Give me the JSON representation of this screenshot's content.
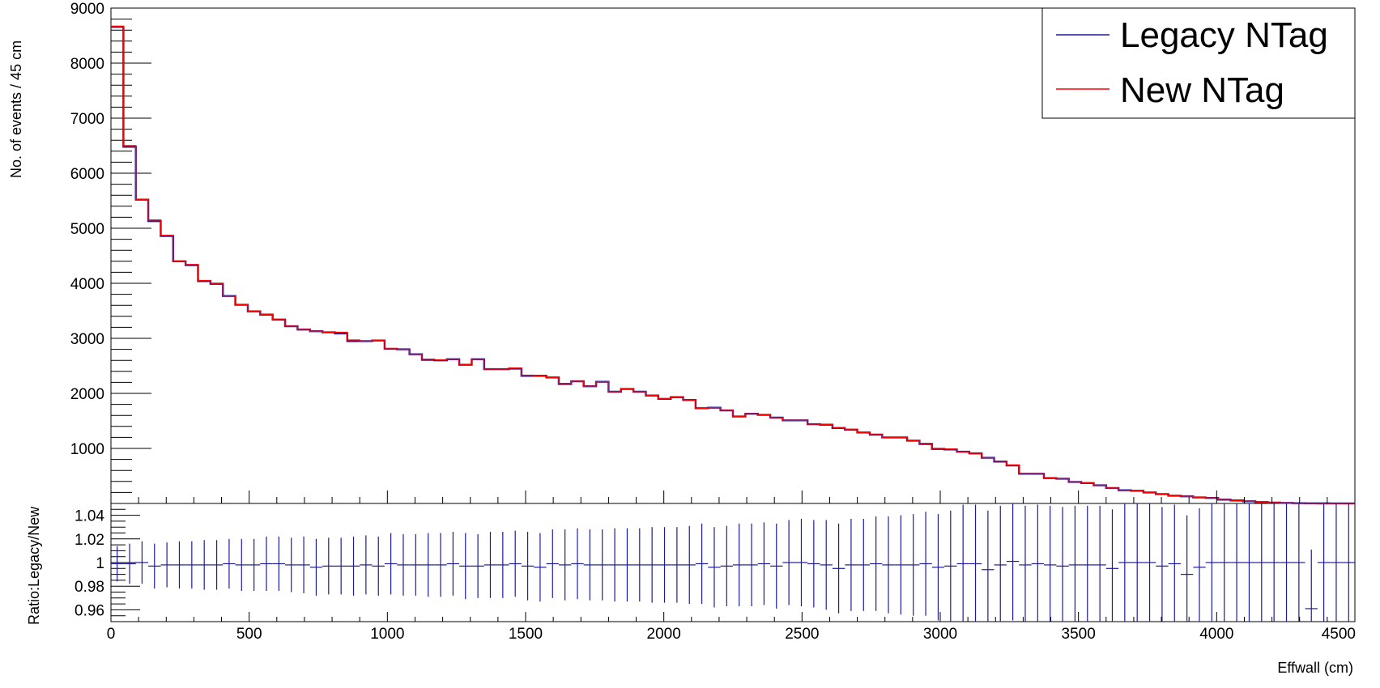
{
  "chart_data": [
    {
      "type": "step",
      "panel": "main",
      "xlabel": "Effwall (cm)",
      "ylabel": "No. of events / 45 cm",
      "xlim": [
        0,
        4500
      ],
      "ylim": [
        0,
        9000
      ],
      "ylim_visible_min": 0,
      "yticks": [
        1000,
        2000,
        3000,
        4000,
        5000,
        6000,
        7000,
        8000,
        9000
      ],
      "xticks": [
        0,
        500,
        1000,
        1500,
        2000,
        2500,
        3000,
        3500,
        4000,
        4500
      ],
      "bin_width": 45,
      "grid": false,
      "legend_position": "top-right",
      "series": [
        {
          "name": "Legacy NTag",
          "color": "#1c1c9c",
          "values": [
            8660,
            6480,
            5520,
            5130,
            4860,
            4400,
            4330,
            4040,
            3990,
            3770,
            3610,
            3490,
            3430,
            3340,
            3220,
            3160,
            3130,
            3110,
            3090,
            2950,
            2950,
            2960,
            2810,
            2800,
            2710,
            2610,
            2600,
            2620,
            2520,
            2620,
            2440,
            2440,
            2450,
            2320,
            2320,
            2290,
            2170,
            2220,
            2130,
            2210,
            2030,
            2080,
            2030,
            1960,
            1900,
            1930,
            1880,
            1730,
            1740,
            1690,
            1580,
            1630,
            1610,
            1560,
            1510,
            1510,
            1440,
            1430,
            1370,
            1340,
            1290,
            1250,
            1200,
            1200,
            1140,
            1080,
            990,
            980,
            940,
            910,
            830,
            760,
            690,
            540,
            540,
            460,
            450,
            390,
            370,
            330,
            280,
            240,
            230,
            200,
            170,
            140,
            130,
            110,
            100,
            70,
            55,
            40,
            25,
            15,
            10,
            5,
            3,
            2,
            1,
            1
          ]
        },
        {
          "name": "New NTag",
          "color": "#ff0000",
          "values": [
            8670,
            6500,
            5520,
            5150,
            4870,
            4400,
            4340,
            4050,
            4000,
            3770,
            3610,
            3490,
            3430,
            3340,
            3220,
            3160,
            3130,
            3110,
            3110,
            2970,
            2950,
            2960,
            2810,
            2800,
            2710,
            2620,
            2610,
            2620,
            2520,
            2620,
            2440,
            2440,
            2460,
            2330,
            2320,
            2290,
            2180,
            2220,
            2130,
            2210,
            2030,
            2080,
            2030,
            1960,
            1900,
            1930,
            1880,
            1730,
            1740,
            1690,
            1580,
            1630,
            1610,
            1560,
            1510,
            1510,
            1440,
            1430,
            1380,
            1340,
            1290,
            1250,
            1200,
            1200,
            1140,
            1090,
            1000,
            990,
            940,
            910,
            830,
            770,
            700,
            540,
            540,
            460,
            450,
            390,
            370,
            330,
            280,
            240,
            230,
            200,
            170,
            140,
            130,
            110,
            100,
            70,
            55,
            40,
            25,
            15,
            10,
            5,
            3,
            2,
            1,
            1
          ]
        }
      ]
    },
    {
      "type": "errorbar",
      "panel": "ratio",
      "xlabel": "Effwall (cm)",
      "ylabel": "Ratio:Legacy/New",
      "xlim": [
        0,
        4500
      ],
      "ylim": [
        0.95,
        1.05
      ],
      "yticks": [
        0.96,
        0.98,
        1,
        1.02,
        1.04
      ],
      "ytick_labels": [
        "0.96",
        "0.98",
        "1",
        "1.02",
        "1.04"
      ],
      "bin_width": 45,
      "x": [
        22.5,
        67.5,
        112.5,
        157.5,
        202.5,
        247.5,
        292.5,
        337.5,
        382.5,
        427.5,
        472.5,
        517.5,
        562.5,
        607.5,
        652.5,
        697.5,
        742.5,
        787.5,
        832.5,
        877.5,
        922.5,
        967.5,
        1012.5,
        1057.5,
        1102.5,
        1147.5,
        1192.5,
        1237.5,
        1282.5,
        1327.5,
        1372.5,
        1417.5,
        1462.5,
        1507.5,
        1552.5,
        1597.5,
        1642.5,
        1687.5,
        1732.5,
        1777.5,
        1822.5,
        1867.5,
        1912.5,
        1957.5,
        2002.5,
        2047.5,
        2092.5,
        2137.5,
        2182.5,
        2227.5,
        2272.5,
        2317.5,
        2362.5,
        2407.5,
        2452.5,
        2497.5,
        2542.5,
        2587.5,
        2632.5,
        2677.5,
        2722.5,
        2767.5,
        2812.5,
        2857.5,
        2902.5,
        2947.5,
        2992.5,
        3037.5,
        3082.5,
        3127.5,
        3172.5,
        3217.5,
        3262.5,
        3307.5,
        3352.5,
        3397.5,
        3442.5,
        3487.5,
        3532.5,
        3577.5,
        3622.5,
        3667.5,
        3712.5,
        3757.5,
        3802.5,
        3847.5,
        3892.5,
        3937.5,
        3982.5,
        4027.5,
        4072.5,
        4117.5,
        4162.5,
        4207.5,
        4252.5,
        4297.5,
        4342.5,
        4387.5,
        4432.5,
        4477.5
      ],
      "values": [
        0.999,
        0.999,
        1.0,
        0.997,
        0.998,
        0.998,
        0.998,
        0.998,
        0.998,
        0.999,
        0.998,
        0.998,
        0.999,
        0.999,
        0.998,
        0.998,
        0.996,
        0.997,
        0.997,
        0.997,
        0.998,
        0.997,
        0.999,
        0.998,
        0.998,
        0.998,
        0.998,
        0.999,
        0.997,
        0.997,
        0.998,
        0.998,
        0.999,
        0.997,
        0.996,
        0.999,
        0.998,
        0.999,
        0.998,
        0.998,
        0.998,
        0.998,
        0.998,
        0.998,
        0.998,
        0.998,
        0.998,
        0.999,
        0.996,
        0.997,
        0.998,
        0.998,
        0.999,
        0.997,
        1.0,
        1.0,
        0.999,
        0.998,
        0.995,
        0.998,
        0.998,
        0.999,
        0.998,
        0.998,
        0.998,
        0.999,
        0.996,
        0.997,
        0.999,
        0.999,
        0.994,
        0.998,
        1.001,
        0.998,
        0.999,
        0.998,
        0.997,
        0.998,
        0.998,
        0.998,
        0.995,
        1.0,
        1.0,
        1.0,
        0.997,
        0.999,
        0.99,
        0.996,
        1.0,
        1.0,
        1.0,
        1.0,
        1.0,
        1.0,
        1.0,
        1.0,
        0.961,
        1.0,
        1.0,
        1.0
      ],
      "errors": [
        0.015,
        0.017,
        0.018,
        0.019,
        0.019,
        0.02,
        0.02,
        0.021,
        0.021,
        0.021,
        0.022,
        0.022,
        0.023,
        0.023,
        0.023,
        0.024,
        0.024,
        0.024,
        0.024,
        0.025,
        0.025,
        0.025,
        0.026,
        0.026,
        0.026,
        0.027,
        0.027,
        0.027,
        0.028,
        0.027,
        0.028,
        0.028,
        0.028,
        0.029,
        0.029,
        0.029,
        0.03,
        0.03,
        0.03,
        0.03,
        0.031,
        0.031,
        0.031,
        0.032,
        0.032,
        0.032,
        0.033,
        0.034,
        0.034,
        0.034,
        0.035,
        0.035,
        0.035,
        0.036,
        0.036,
        0.037,
        0.037,
        0.038,
        0.038,
        0.039,
        0.039,
        0.04,
        0.041,
        0.042,
        0.043,
        0.044,
        0.045,
        0.047,
        0.05,
        0.05,
        0.05,
        0.05,
        0.05,
        0.05,
        0.05,
        0.05,
        0.05,
        0.05,
        0.05,
        0.05,
        0.05,
        0.05,
        0.05,
        0.05,
        0.05,
        0.05,
        0.05,
        0.05,
        0.05,
        0.05,
        0.05,
        0.05,
        0.05,
        0.05,
        0.05,
        0.05,
        0.05,
        0.05,
        0.05,
        0.05
      ],
      "color": "#1c1c9c",
      "grid": false
    }
  ]
}
